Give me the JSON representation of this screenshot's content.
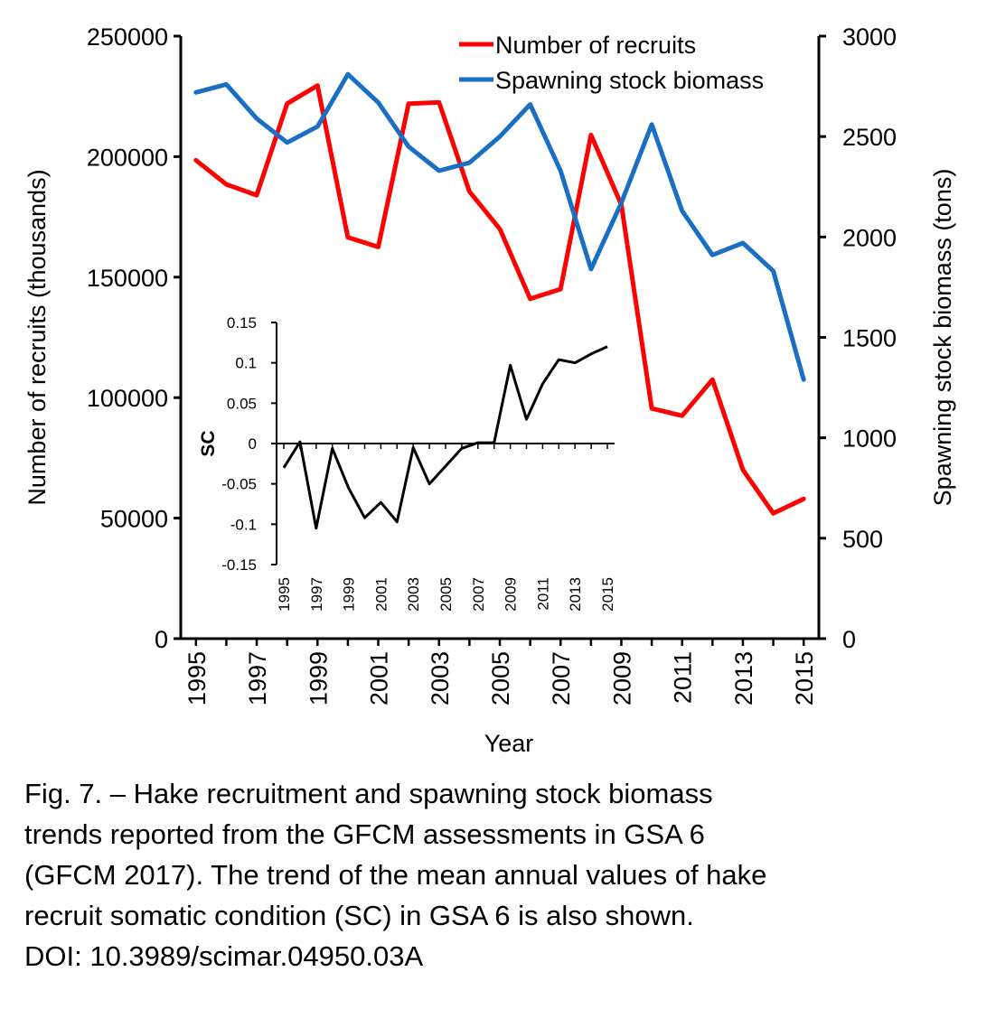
{
  "chart_data": [
    {
      "type": "line",
      "x": [
        1995,
        1996,
        1997,
        1998,
        1999,
        2000,
        2001,
        2002,
        2003,
        2004,
        2005,
        2006,
        2007,
        2008,
        2009,
        2010,
        2011,
        2012,
        2013,
        2014,
        2015
      ],
      "xlabel": "Year",
      "x_tick_labels": [
        "1995",
        "1997",
        "1999",
        "2001",
        "2003",
        "2005",
        "2007",
        "2009",
        "2011",
        "2013",
        "2015"
      ],
      "ylabel_left": "Number of recruits (thousands)",
      "ylim_left": [
        0,
        250000
      ],
      "y_ticks_left": [
        "0",
        "50000",
        "100000",
        "150000",
        "200000",
        "250000"
      ],
      "ylabel_right": "Spawning stock biomass (tons)",
      "ylim_right": [
        0,
        3000
      ],
      "y_ticks_right": [
        "0",
        "500",
        "1000",
        "1500",
        "2000",
        "2500",
        "3000"
      ],
      "legend_position": "top-center",
      "series": [
        {
          "name": "Number of recruits",
          "axis": "left",
          "color": "#ff0000",
          "values": [
            198500,
            188500,
            184000,
            222000,
            229500,
            166500,
            162500,
            222000,
            222500,
            185500,
            170000,
            141000,
            145000,
            209000,
            180000,
            95500,
            92500,
            107500,
            70000,
            52000,
            58000
          ]
        },
        {
          "name": "Spawning stock biomass",
          "axis": "right",
          "color": "#1a6fc4",
          "values": [
            2720,
            2760,
            2590,
            2470,
            2550,
            2810,
            2670,
            2450,
            2330,
            2370,
            2500,
            2660,
            2330,
            1840,
            2170,
            2560,
            2130,
            1910,
            1970,
            1830,
            1290
          ]
        }
      ]
    },
    {
      "type": "line",
      "inset": true,
      "x": [
        1995,
        1996,
        1997,
        1998,
        1999,
        2000,
        2001,
        2002,
        2003,
        2004,
        2005,
        2006,
        2007,
        2008,
        2009,
        2010,
        2011,
        2012,
        2013,
        2014,
        2015
      ],
      "x_tick_labels": [
        "1995",
        "1997",
        "1999",
        "2001",
        "2003",
        "2005",
        "2007",
        "2009",
        "2011",
        "2013",
        "2015"
      ],
      "ylabel": "SC",
      "ylim": [
        -0.15,
        0.15
      ],
      "y_ticks": [
        "-0.15",
        "-0.1",
        "-0.05",
        "0",
        "0.05",
        "0.1",
        "0.15"
      ],
      "series": [
        {
          "color": "#000000",
          "values": [
            -0.03,
            0.002,
            -0.105,
            -0.006,
            -0.055,
            -0.092,
            -0.073,
            -0.097,
            -0.005,
            -0.05,
            -0.028,
            -0.006,
            0.001,
            0.001,
            0.097,
            0.03,
            0.074,
            0.104,
            0.1,
            0.111,
            0.12
          ]
        }
      ]
    }
  ],
  "caption": {
    "lines": [
      "Fig. 7. – Hake recruitment and spawning stock biomass",
      "trends reported from the GFCM assessments in GSA 6",
      "(GFCM 2017). The trend of the mean annual values of hake",
      "recruit somatic condition (SC) in GSA 6 is also shown.",
      "DOI: 10.3989/scimar.04950.03A"
    ]
  }
}
